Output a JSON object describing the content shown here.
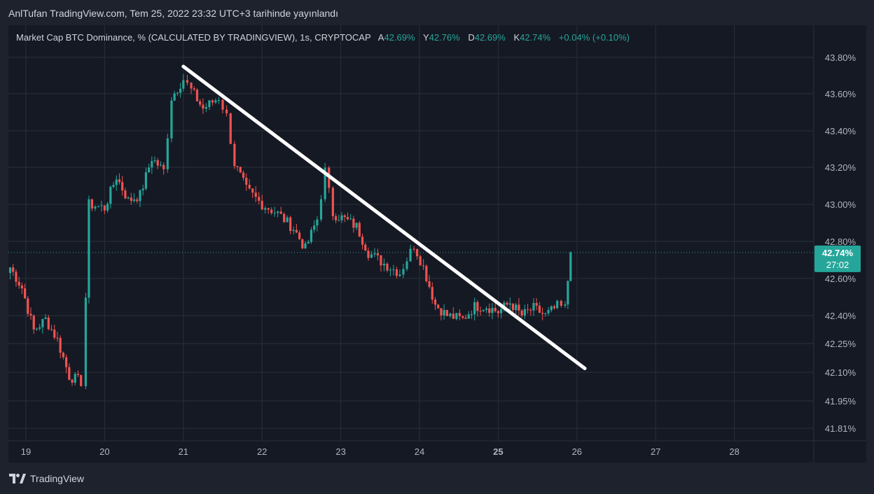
{
  "caption": "AnlTufan TradingView.com, Tem 25, 2022 23:32 UTC+3 tarihinde yayınlandı",
  "legend": {
    "symbol": "Market Cap BTC Dominance, % (CALCULATED BY TRADINGVIEW), 1s, CRYPTOCAP",
    "open_label": "A",
    "open": "42.69%",
    "high_label": "Y",
    "high": "42.76%",
    "low_label": "D",
    "low": "42.69%",
    "close_label": "K",
    "close": "42.74%",
    "change": "+0.04% (+0.10%)"
  },
  "price_tag": {
    "value": "42.74%",
    "countdown": "27:02"
  },
  "brand": {
    "name": "TradingView"
  },
  "colors": {
    "up": "#26a69a",
    "down": "#ef5350",
    "trendline": "#ffffff",
    "grid": "#2a2e39"
  },
  "chart_data": {
    "type": "candlestick",
    "y_ticks": [
      "43.80%",
      "43.60%",
      "43.40%",
      "43.20%",
      "43.00%",
      "42.80%",
      "42.60%",
      "42.40%",
      "42.25%",
      "42.10%",
      "41.95%",
      "41.81%"
    ],
    "x_ticks": [
      "19",
      "20",
      "21",
      "22",
      "23",
      "24",
      "25",
      "26",
      "27",
      "28"
    ],
    "x_bold_tick": "25",
    "current_price": 42.74,
    "trendline": {
      "start": {
        "day": 21.0,
        "value": 43.75
      },
      "end": {
        "day": 26.1,
        "value": 42.12
      }
    },
    "anchors": [
      [
        18.8,
        42.66
      ],
      [
        18.95,
        42.55
      ],
      [
        19.1,
        42.32
      ],
      [
        19.25,
        42.38
      ],
      [
        19.4,
        42.27
      ],
      [
        19.55,
        42.08
      ],
      [
        19.7,
        42.05
      ],
      [
        19.76,
        42.5
      ],
      [
        19.8,
        43.0
      ],
      [
        20.0,
        42.98
      ],
      [
        20.15,
        43.15
      ],
      [
        20.3,
        43.02
      ],
      [
        20.45,
        43.05
      ],
      [
        20.6,
        43.25
      ],
      [
        20.75,
        43.18
      ],
      [
        20.85,
        43.58
      ],
      [
        21.0,
        43.68
      ],
      [
        21.1,
        43.62
      ],
      [
        21.25,
        43.52
      ],
      [
        21.45,
        43.58
      ],
      [
        21.55,
        43.48
      ],
      [
        21.65,
        43.22
      ],
      [
        21.8,
        43.08
      ],
      [
        22.0,
        43.0
      ],
      [
        22.2,
        42.95
      ],
      [
        22.4,
        42.87
      ],
      [
        22.55,
        42.76
      ],
      [
        22.7,
        42.92
      ],
      [
        22.8,
        43.18
      ],
      [
        22.9,
        42.95
      ],
      [
        23.05,
        42.92
      ],
      [
        23.2,
        42.88
      ],
      [
        23.35,
        42.74
      ],
      [
        23.55,
        42.68
      ],
      [
        23.75,
        42.63
      ],
      [
        23.93,
        42.78
      ],
      [
        24.05,
        42.66
      ],
      [
        24.2,
        42.46
      ],
      [
        24.35,
        42.4
      ],
      [
        24.55,
        42.38
      ],
      [
        24.7,
        42.45
      ],
      [
        24.85,
        42.45
      ],
      [
        25.0,
        42.42
      ],
      [
        25.15,
        42.47
      ],
      [
        25.3,
        42.4
      ],
      [
        25.45,
        42.44
      ],
      [
        25.6,
        42.4
      ],
      [
        25.75,
        42.45
      ],
      [
        25.85,
        42.44
      ],
      [
        25.92,
        42.74
      ]
    ]
  }
}
